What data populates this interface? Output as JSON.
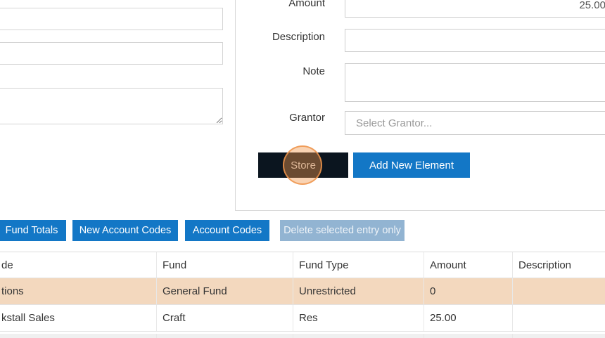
{
  "panel": {
    "amount_label": "Amount",
    "amount_value": "25.00",
    "description_label": "Description",
    "description_value": "",
    "note_label": "Note",
    "note_value": "",
    "grantor_label": "Grantor",
    "grantor_placeholder": "Select Grantor...",
    "store_button": "Store",
    "add_new_element_button": "Add New Element"
  },
  "actions": {
    "fund_totals": "Fund Totals",
    "new_account_codes": "New Account Codes",
    "account_codes": "Account Codes",
    "delete_selected": "Delete selected entry only"
  },
  "table": {
    "columns": [
      "de",
      "Fund",
      "Fund Type",
      "Amount",
      "Description"
    ],
    "rows": [
      {
        "code": "tions",
        "fund": "General Fund",
        "fund_type": "Unrestricted",
        "amount": "0",
        "description": "",
        "selected": true
      },
      {
        "code": "kstall Sales",
        "fund": "Craft",
        "fund_type": "Res",
        "amount": "25.00",
        "description": "",
        "selected": false
      }
    ]
  },
  "colors": {
    "primary_blue": "#1377c6",
    "disabled_button_blue": "#92b4d2",
    "store_button_dark": "#0b151f",
    "selected_row_peach": "#f3d8be",
    "annotation_orange": "#f09749"
  }
}
